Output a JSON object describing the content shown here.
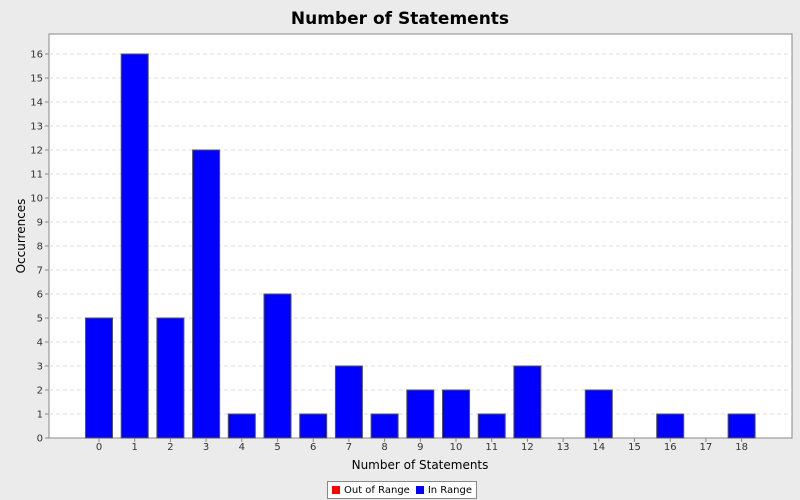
{
  "chart_data": {
    "type": "bar",
    "title": "Number of Statements",
    "xlabel": "Number of Statements",
    "ylabel": "Occurrences",
    "categories": [
      "0",
      "1",
      "2",
      "3",
      "4",
      "5",
      "6",
      "7",
      "8",
      "9",
      "10",
      "11",
      "12",
      "13",
      "14",
      "15",
      "16",
      "17",
      "18"
    ],
    "values": [
      5,
      16,
      5,
      12,
      1,
      6,
      1,
      3,
      1,
      2,
      2,
      1,
      3,
      0,
      2,
      0,
      1,
      0,
      1
    ],
    "ylim": [
      0,
      17
    ],
    "yticks": [
      0,
      1,
      2,
      3,
      4,
      5,
      6,
      7,
      8,
      9,
      10,
      11,
      12,
      13,
      14,
      15,
      16
    ],
    "grid": true,
    "legend_position": "bottom-center",
    "series": [
      {
        "name": "Out of Range",
        "color": "#ff0000"
      },
      {
        "name": "In Range",
        "color": "#0000ff"
      }
    ]
  }
}
